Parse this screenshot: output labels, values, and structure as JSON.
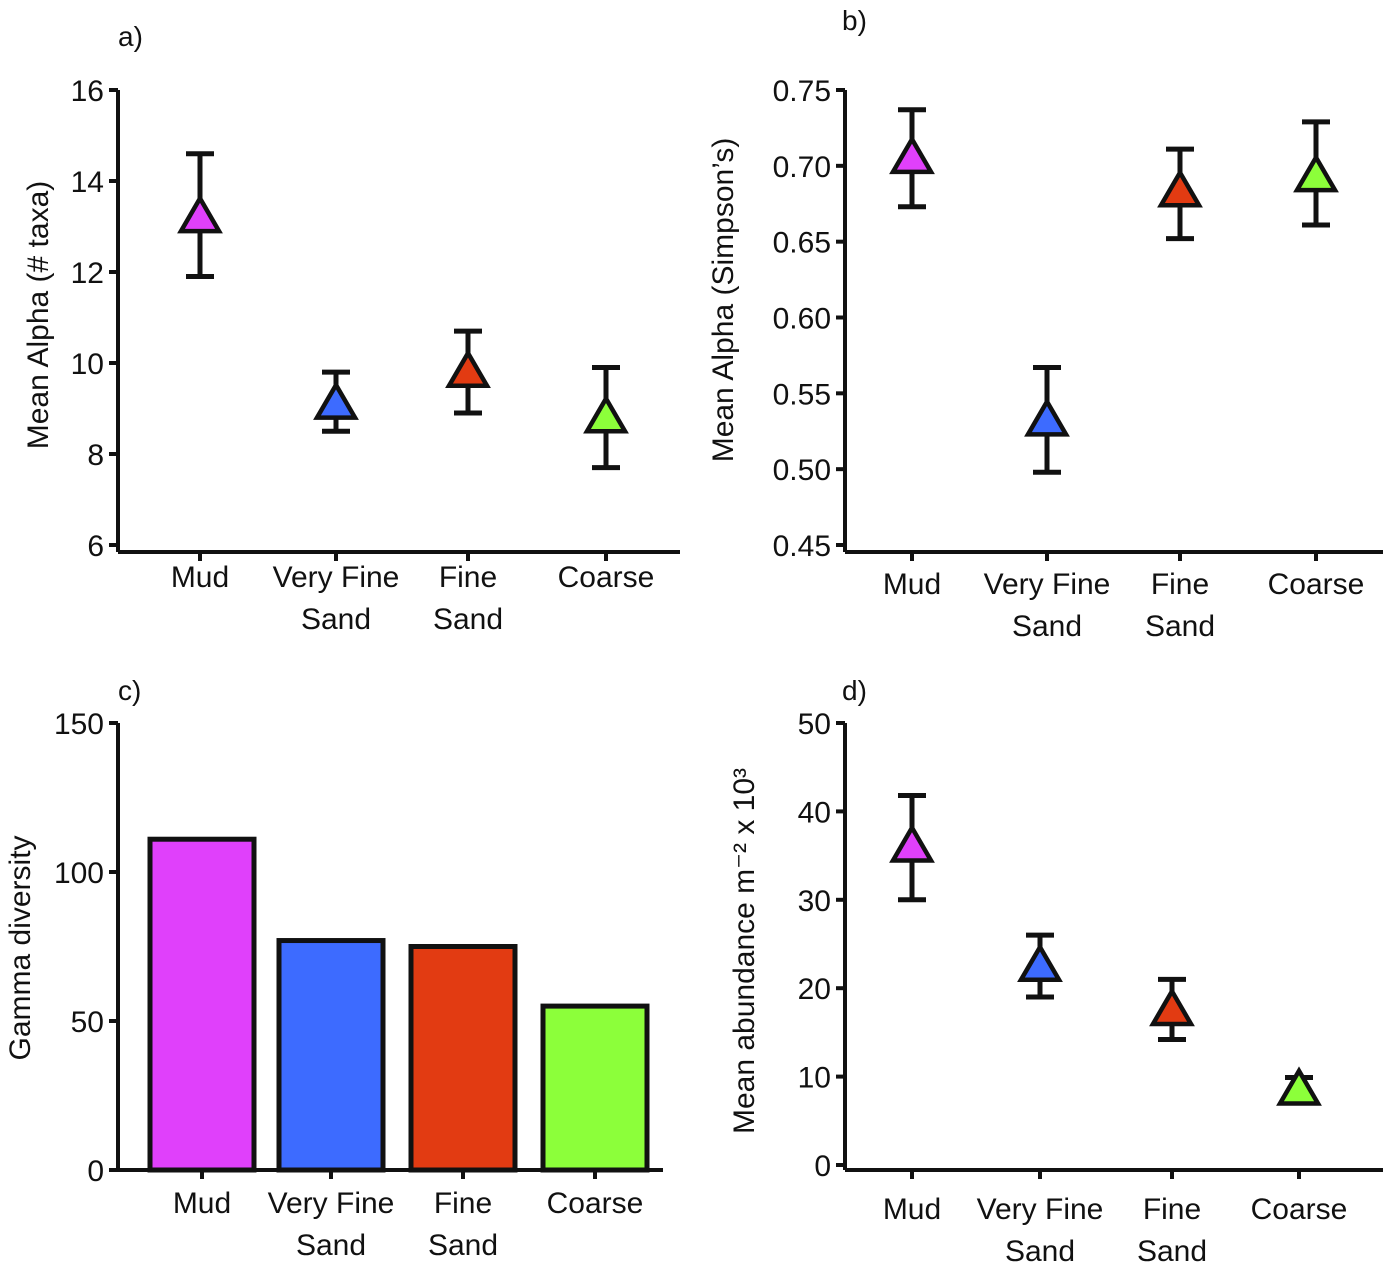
{
  "colors": {
    "mud": "#e040fb",
    "very_fine_sand": "#3d6bff",
    "fine_sand": "#e23b12",
    "coarse": "#8cff3a",
    "axis": "#111111"
  },
  "chart_data": [
    {
      "panel": "a)",
      "type": "scatter",
      "marker": "triangle",
      "categories": [
        [
          "Mud"
        ],
        [
          "Very Fine",
          "Sand"
        ],
        [
          "Fine",
          "Sand"
        ],
        [
          "Coarse"
        ]
      ],
      "values": [
        13.2,
        9.1,
        9.8,
        8.8
      ],
      "error_low": [
        11.9,
        8.5,
        8.9,
        7.7
      ],
      "error_high": [
        14.6,
        9.8,
        10.7,
        9.9
      ],
      "ylabel": "Mean Alpha (# taxa)",
      "ylim": [
        6,
        16
      ],
      "yticks": [
        "6",
        "8",
        "10",
        "12",
        "14",
        "16"
      ],
      "ytick_values": [
        6,
        8,
        10,
        12,
        14,
        16
      ]
    },
    {
      "panel": "b)",
      "type": "scatter",
      "marker": "triangle",
      "categories": [
        [
          "Mud"
        ],
        [
          "Very Fine",
          "Sand"
        ],
        [
          "Fine",
          "Sand"
        ],
        [
          "Coarse"
        ]
      ],
      "values": [
        0.705,
        0.532,
        0.683,
        0.693
      ],
      "error_low": [
        0.673,
        0.498,
        0.652,
        0.661
      ],
      "error_high": [
        0.737,
        0.567,
        0.711,
        0.729
      ],
      "ylabel": "Mean Alpha (Simpson’s)",
      "ylim": [
        0.45,
        0.75
      ],
      "yticks": [
        "0.45",
        "0.50",
        "0.55",
        "0.60",
        "0.65",
        "0.70",
        "0.75"
      ],
      "ytick_values": [
        0.45,
        0.5,
        0.55,
        0.6,
        0.65,
        0.7,
        0.75
      ]
    },
    {
      "panel": "c)",
      "type": "bar",
      "categories": [
        [
          "Mud"
        ],
        [
          "Very Fine",
          "Sand"
        ],
        [
          "Fine",
          "Sand"
        ],
        [
          "Coarse"
        ]
      ],
      "values": [
        111,
        77,
        75,
        55
      ],
      "ylabel": "Gamma diversity",
      "ylim": [
        0,
        150
      ],
      "yticks": [
        "0",
        "50",
        "100",
        "150"
      ],
      "ytick_values": [
        0,
        50,
        100,
        150
      ]
    },
    {
      "panel": "d)",
      "type": "scatter",
      "marker": "triangle",
      "categories": [
        [
          "Mud"
        ],
        [
          "Very Fine",
          "Sand"
        ],
        [
          "Fine",
          "Sand"
        ],
        [
          "Coarse"
        ]
      ],
      "values": [
        36,
        22.5,
        17.5,
        8.5
      ],
      "error_low": [
        30,
        19,
        14.2,
        7.3
      ],
      "error_high": [
        41.8,
        26,
        21,
        9.9
      ],
      "ylabel": "Mean abundance m⁻² x 10³",
      "ylim": [
        0,
        50
      ],
      "yticks": [
        "0",
        "10",
        "20",
        "30",
        "40",
        "50"
      ],
      "ytick_values": [
        0,
        10,
        20,
        30,
        40,
        50
      ]
    }
  ]
}
